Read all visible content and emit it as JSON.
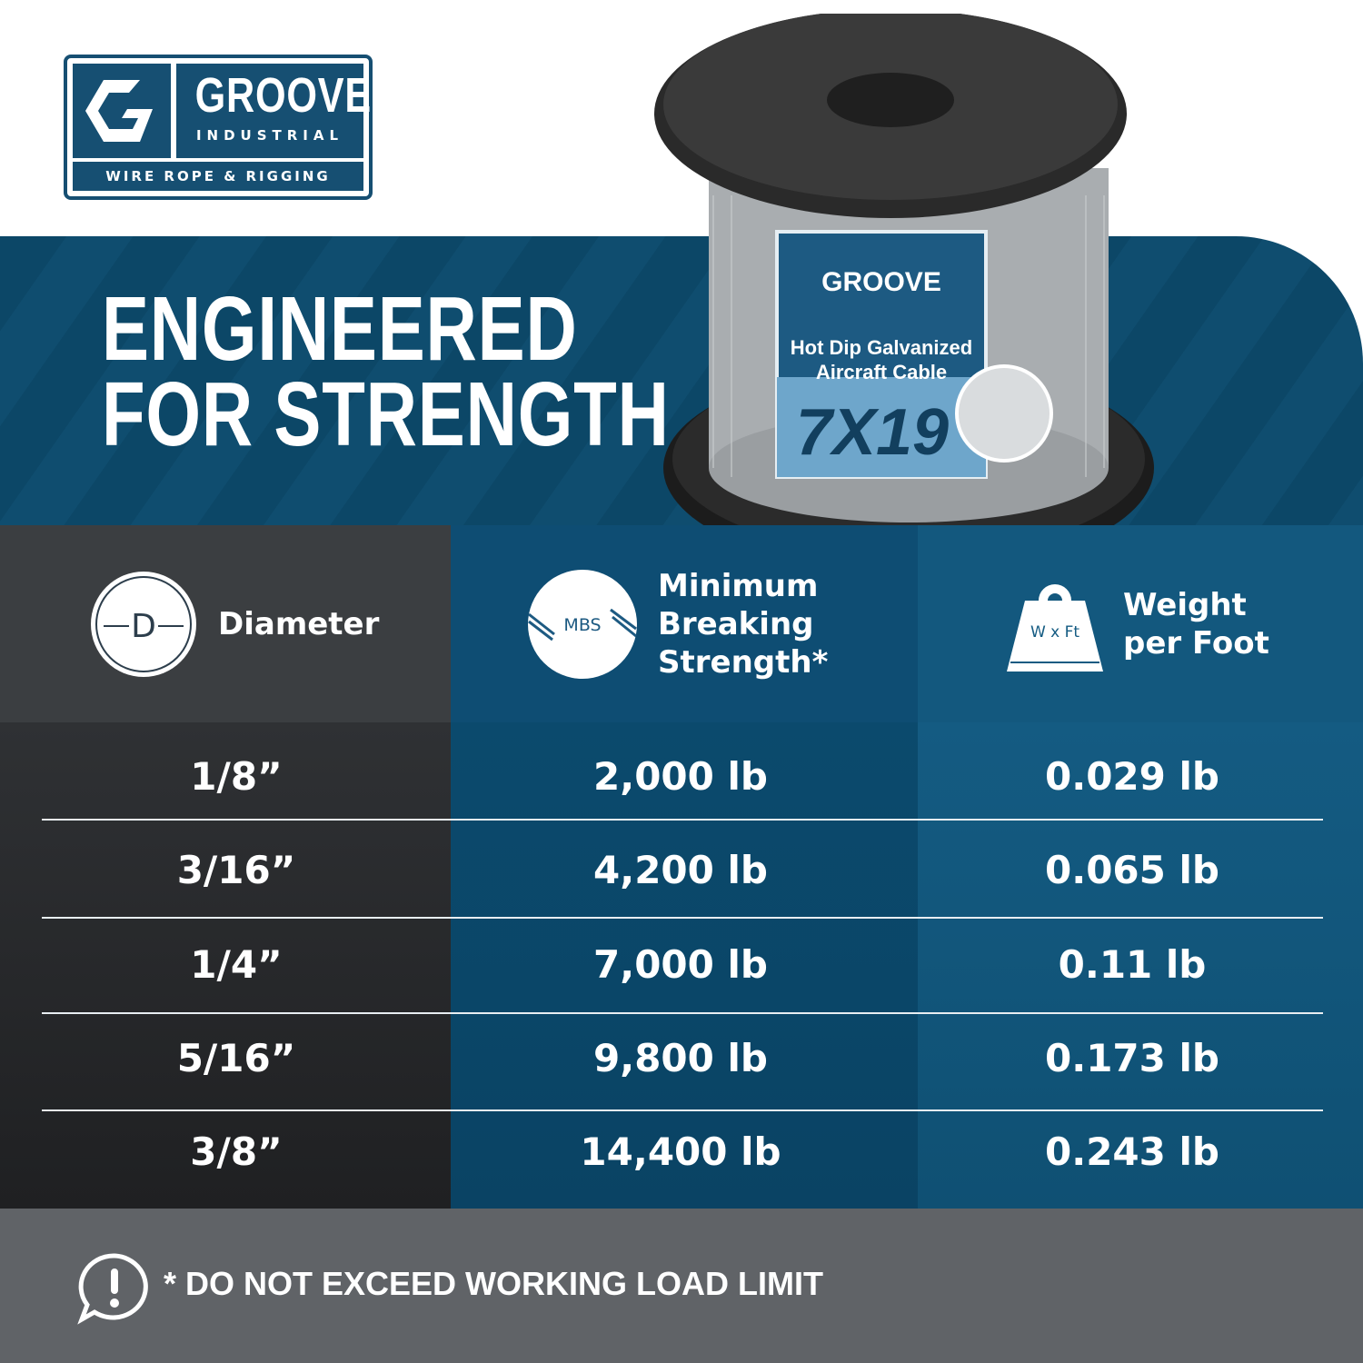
{
  "logo": {
    "brand": "GROOVE",
    "sub": "INDUSTRIAL",
    "tagline": "WIRE ROPE & RIGGING"
  },
  "headline": {
    "line1": "ENGINEERED",
    "line2": "FOR STRENGTH"
  },
  "product": {
    "label_line1": "Hot Dip Galvanized",
    "label_line2": "Aircraft Cable",
    "construction": "7X19"
  },
  "table": {
    "headers": [
      {
        "label": "Diameter",
        "icon": "diameter-icon",
        "icon_text": "D"
      },
      {
        "label_lines": [
          "Minimum",
          "Breaking",
          "Strength*"
        ],
        "icon": "mbs-icon",
        "icon_text": "MBS"
      },
      {
        "label_lines": [
          "Weight",
          "per Foot"
        ],
        "icon": "weight-icon",
        "icon_text": "W x Ft"
      }
    ],
    "rows": [
      {
        "diameter": "1/8”",
        "mbs": "2,000 lb",
        "weight": "0.029 lb"
      },
      {
        "diameter": "3/16”",
        "mbs": "4,200 lb",
        "weight": "0.065 lb"
      },
      {
        "diameter": "1/4”",
        "mbs": "7,000 lb",
        "weight": "0.11 lb"
      },
      {
        "diameter": "5/16”",
        "mbs": "9,800 lb",
        "weight": "0.173 lb"
      },
      {
        "diameter": "3/8”",
        "mbs": "14,400 lb",
        "weight": "0.243 lb"
      }
    ]
  },
  "footer": {
    "note": "* DO NOT EXCEED WORKING LOAD LIMIT",
    "icon": "alert-icon"
  },
  "colors": {
    "brand_blue": "#164f72",
    "band": "#0c4767",
    "footer": "#606367"
  }
}
